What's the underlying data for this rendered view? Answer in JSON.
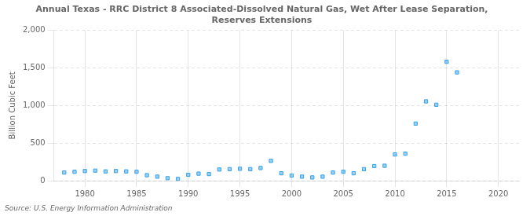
{
  "chart_data": {
    "type": "scatter",
    "title": "Annual Texas - RRC District 8 Associated-Dissolved Natural Gas, Wet After Lease Separation,\nReserves Extensions",
    "ylabel": "Billion Cubic Feet",
    "source": "Source: U.S. Energy Information Administration",
    "marker": "square",
    "grid": true,
    "xlim": [
      1977,
      2022
    ],
    "ylim": [
      0,
      2000
    ],
    "xticks": [
      1980,
      1985,
      1990,
      1995,
      2000,
      2005,
      2010,
      2015,
      2020
    ],
    "yticks": [
      0,
      500,
      {
        "value": 1000,
        "label": "1,000"
      },
      {
        "value": 1500,
        "label": "1,500"
      },
      {
        "value": 2000,
        "label": "2,000"
      }
    ],
    "x": [
      1978,
      1979,
      1980,
      1981,
      1982,
      1983,
      1984,
      1985,
      1986,
      1987,
      1988,
      1989,
      1990,
      1991,
      1992,
      1993,
      1994,
      1995,
      1996,
      1997,
      1998,
      1999,
      2000,
      2001,
      2002,
      2003,
      2004,
      2005,
      2006,
      2007,
      2008,
      2009,
      2010,
      2011,
      2012,
      2013,
      2014,
      2015,
      2016
    ],
    "values": [
      110,
      120,
      130,
      135,
      125,
      130,
      125,
      120,
      75,
      55,
      35,
      25,
      80,
      95,
      90,
      150,
      155,
      160,
      155,
      170,
      265,
      100,
      70,
      55,
      45,
      55,
      110,
      120,
      100,
      155,
      195,
      200,
      350,
      360,
      760,
      1055,
      1010,
      1580,
      1440
    ]
  }
}
